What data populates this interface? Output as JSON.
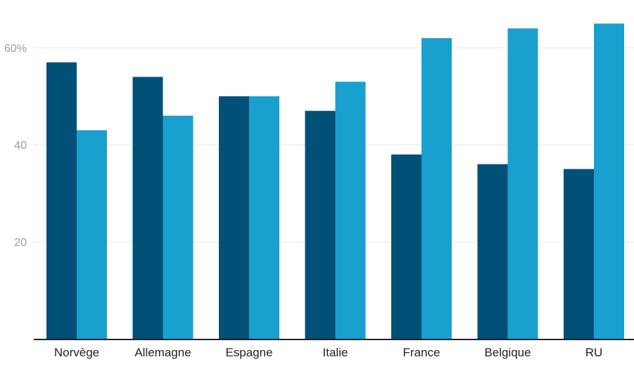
{
  "chart_data": {
    "type": "bar",
    "categories": [
      "Norvège",
      "Allemagne",
      "Espagne",
      "Italie",
      "France",
      "Belgique",
      "RU"
    ],
    "series": [
      {
        "values": [
          57,
          54,
          50,
          47,
          38,
          36,
          35
        ],
        "color": "#005078"
      },
      {
        "values": [
          43,
          46,
          50,
          53,
          62,
          64,
          65
        ],
        "color": "#1aa0cf"
      }
    ],
    "yticks": [
      {
        "value": 20,
        "label": "20"
      },
      {
        "value": 40,
        "label": "40"
      },
      {
        "value": 60,
        "label": "60%"
      }
    ],
    "ylim": [
      0,
      65
    ],
    "grid": true,
    "legend": "none"
  }
}
